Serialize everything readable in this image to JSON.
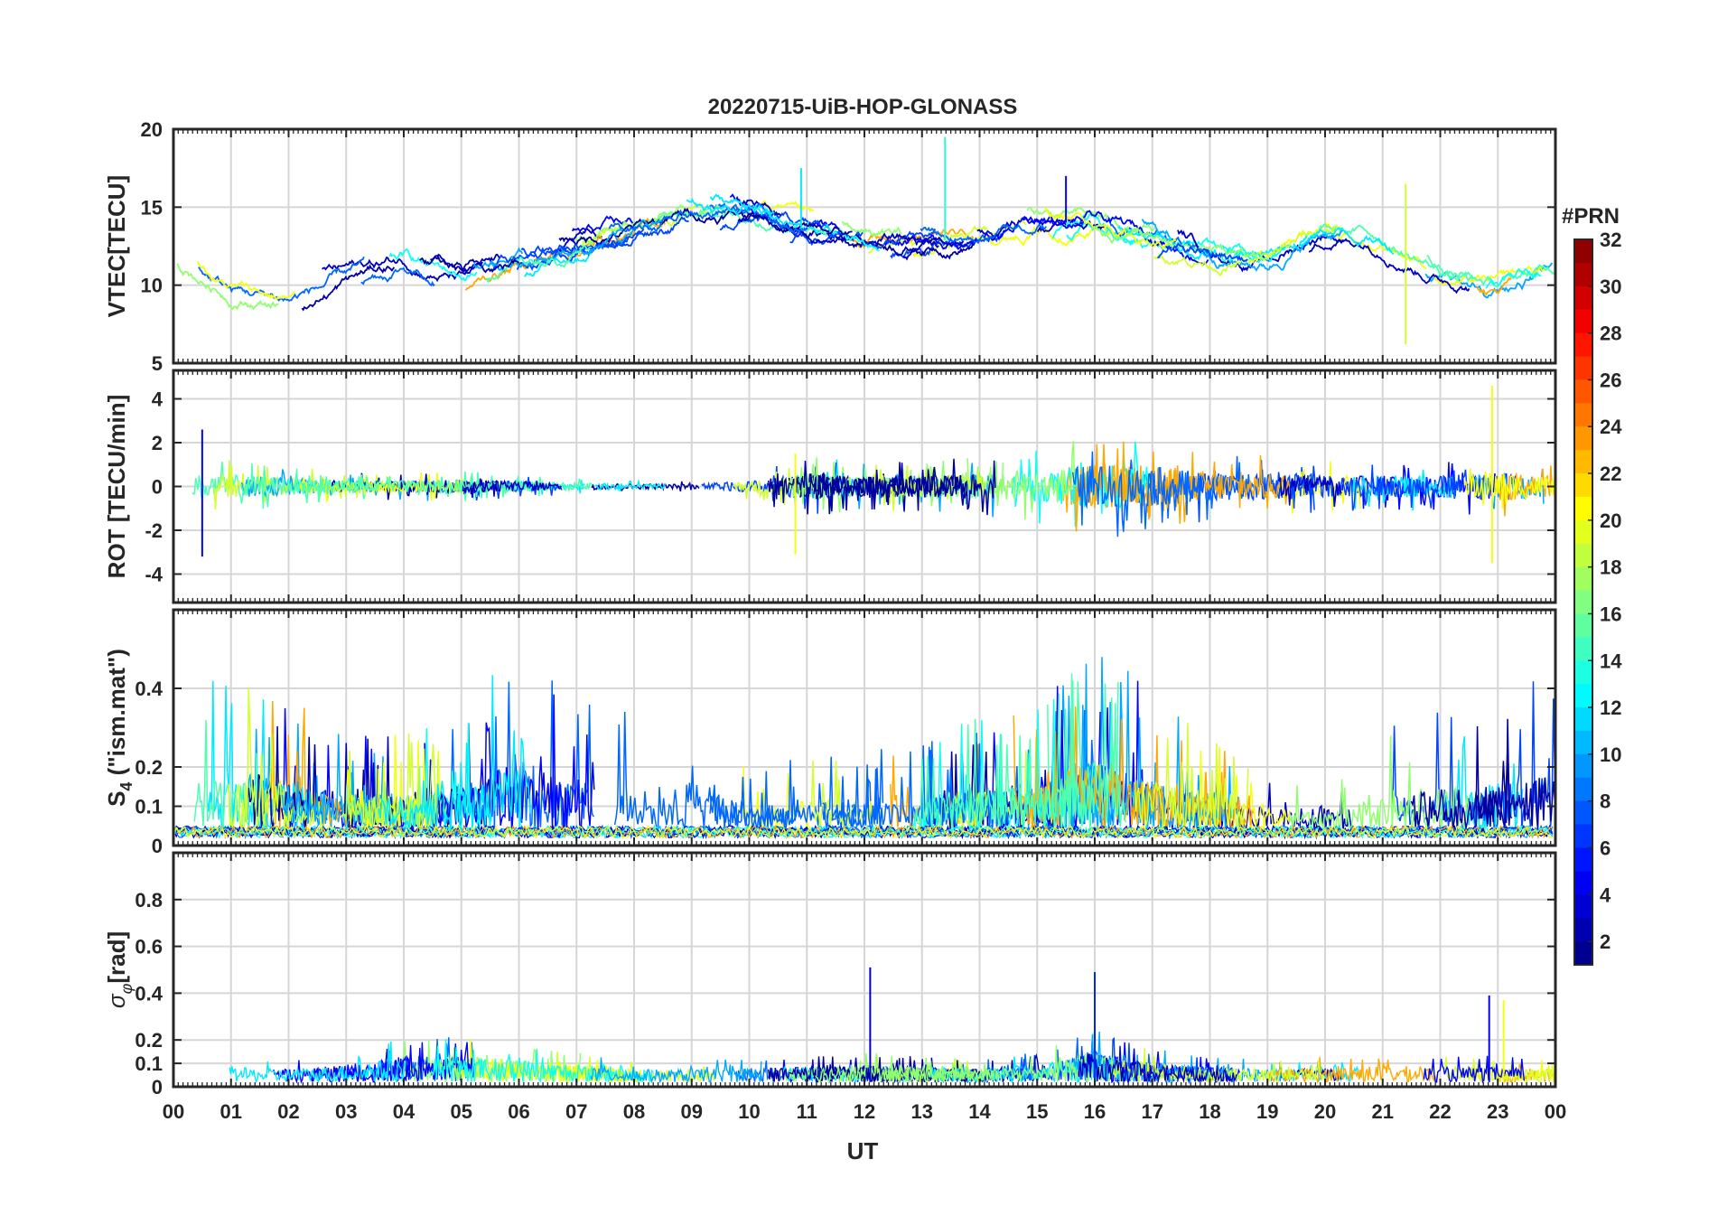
{
  "chart_data": {
    "type": "line",
    "title": "20220715-UiB-HOP-GLONASS",
    "xlabel": "UT",
    "x_tick_labels": [
      "00",
      "01",
      "02",
      "03",
      "04",
      "05",
      "06",
      "07",
      "08",
      "09",
      "10",
      "11",
      "12",
      "13",
      "14",
      "15",
      "16",
      "17",
      "18",
      "19",
      "20",
      "21",
      "22",
      "23",
      "00"
    ],
    "xlim": [
      0,
      24
    ],
    "grid": true,
    "colorbar": {
      "title": "#PRN",
      "range": [
        1,
        32
      ],
      "tick_labels": [
        "2",
        "4",
        "6",
        "8",
        "10",
        "12",
        "14",
        "16",
        "18",
        "20",
        "22",
        "24",
        "26",
        "28",
        "30",
        "32"
      ],
      "colormap": "jet"
    },
    "panels": [
      {
        "id": "vtec",
        "ylabel": "VTEC[TECU]",
        "ylim": [
          5,
          20
        ],
        "y_tick_labels": [
          "5",
          "10",
          "15",
          "20"
        ],
        "y_ticks": [
          5,
          10,
          15,
          20
        ],
        "profile": {
          "x": [
            0,
            1,
            2,
            3,
            4,
            5,
            6,
            7,
            8,
            9,
            10,
            11,
            12,
            13,
            14,
            15,
            16,
            17,
            18,
            19,
            20,
            21,
            22,
            23,
            24
          ],
          "y": [
            11.5,
            9.5,
            9.0,
            10.5,
            11.5,
            10.5,
            11.5,
            12.5,
            13.5,
            14.5,
            14.8,
            13.5,
            13.0,
            12.8,
            13.0,
            14.0,
            14.0,
            13.0,
            12.0,
            11.5,
            13.5,
            13.0,
            11.0,
            10.0,
            11.0
          ]
        },
        "spread": 1.2,
        "spikes": [
          {
            "x": 10.9,
            "y_max": 17.5,
            "prn": 12
          },
          {
            "x": 13.4,
            "y_max": 19.5,
            "prn": 14
          },
          {
            "x": 15.5,
            "y_max": 17.0,
            "prn": 5
          },
          {
            "x": 21.4,
            "y_min": 6.2,
            "y_max": 16.5,
            "prn": 19
          }
        ]
      },
      {
        "id": "rot",
        "ylabel": "ROT [TECU/min]",
        "ylim": [
          -5.3,
          5.3
        ],
        "y_tick_labels": [
          "-4",
          "-2",
          "0",
          "2",
          "4"
        ],
        "y_ticks": [
          -4,
          -2,
          0,
          2,
          4
        ],
        "profile": {
          "x": [
            0,
            2,
            3,
            5,
            7,
            9,
            10,
            11,
            12,
            13,
            14,
            15,
            16,
            17,
            18,
            19,
            20,
            21,
            22,
            23,
            24
          ],
          "y": [
            1.2,
            0.8,
            0.5,
            0.6,
            0.3,
            0.2,
            0.5,
            1.2,
            0.9,
            1.0,
            1.1,
            1.4,
            2.0,
            1.8,
            1.3,
            1.2,
            1.0,
            1.0,
            1.0,
            1.3,
            0.9
          ]
        },
        "spikes": [
          {
            "x": 0.5,
            "y_min": -3.2,
            "y_max": 2.6,
            "prn": 5
          },
          {
            "x": 10.8,
            "y_min": -3.1,
            "y_max": 1.5,
            "prn": 20
          },
          {
            "x": 22.9,
            "y_min": -3.5,
            "y_max": 4.6,
            "prn": 20
          }
        ]
      },
      {
        "id": "s4",
        "ylabel": "S4 (\"ism.mat\")",
        "ylim": [
          0,
          0.6
        ],
        "y_tick_labels": [
          "0",
          "0.1",
          "0.2",
          "0.4"
        ],
        "y_ticks": [
          0,
          0.1,
          0.2,
          0.4
        ],
        "profile": {
          "x": [
            0,
            1,
            2,
            3,
            4,
            5,
            6,
            7,
            8,
            9,
            10,
            11,
            12,
            13,
            14,
            15,
            16,
            17,
            18,
            19,
            20,
            21,
            22,
            23,
            24
          ],
          "y": [
            0.35,
            0.4,
            0.35,
            0.25,
            0.25,
            0.3,
            0.5,
            0.35,
            0.3,
            0.35,
            0.15,
            0.2,
            0.2,
            0.22,
            0.3,
            0.3,
            0.5,
            0.35,
            0.25,
            0.15,
            0.15,
            0.25,
            0.3,
            0.3,
            0.45
          ]
        },
        "baseline": 0.03
      },
      {
        "id": "sigma_phi",
        "ylabel": "σφ[rad]",
        "ylim": [
          0,
          1.0
        ],
        "y_tick_labels": [
          "0",
          "0.1",
          "0.2",
          "0.4",
          "0.6",
          "0.8"
        ],
        "y_ticks": [
          0,
          0.1,
          0.2,
          0.4,
          0.6,
          0.8
        ],
        "profile": {
          "x": [
            0,
            1,
            2,
            3,
            4,
            5,
            6,
            7,
            8,
            9,
            10,
            11,
            12,
            13,
            14,
            15,
            16,
            17,
            18,
            19,
            20,
            21,
            22,
            23,
            24
          ],
          "y": [
            0.09,
            0.07,
            0.06,
            0.08,
            0.12,
            0.12,
            0.11,
            0.08,
            0.06,
            0.06,
            0.07,
            0.07,
            0.08,
            0.07,
            0.06,
            0.08,
            0.14,
            0.09,
            0.07,
            0.06,
            0.07,
            0.08,
            0.07,
            0.07,
            0.06
          ]
        },
        "spikes": [
          {
            "x": 12.1,
            "y_max": 0.51,
            "prn": 3
          },
          {
            "x": 16.0,
            "y_max": 0.49,
            "prn": 6
          },
          {
            "x": 22.85,
            "y_max": 0.39,
            "prn": 5
          },
          {
            "x": 23.1,
            "y_max": 0.37,
            "prn": 20
          }
        ]
      }
    ]
  }
}
